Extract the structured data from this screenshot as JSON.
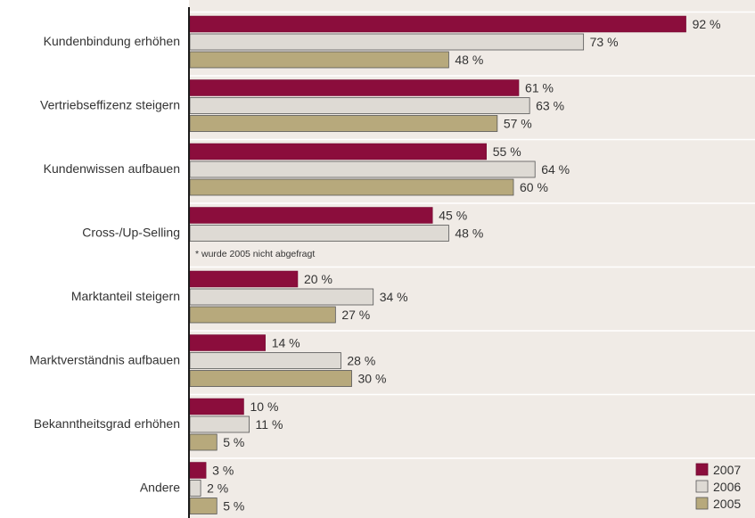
{
  "chart_data": {
    "type": "bar",
    "orientation": "horizontal",
    "categories": [
      "Kundenbindung erhöhen",
      "Vertriebseffizenz steigern",
      "Kundenwissen aufbauen",
      "Cross-/Up-Selling",
      "Marktanteil steigern",
      "Marktverständnis aufbauen",
      "Bekanntheitsgrad erhöhen",
      "Andere"
    ],
    "series": [
      {
        "name": "2007",
        "color": "#8b0d3c",
        "values": [
          92,
          61,
          55,
          45,
          20,
          14,
          10,
          3
        ]
      },
      {
        "name": "2006",
        "color": "#dedad4",
        "values": [
          73,
          63,
          64,
          48,
          34,
          28,
          11,
          2
        ]
      },
      {
        "name": "2005",
        "color": "#b7a97c",
        "values": [
          48,
          57,
          60,
          null,
          27,
          30,
          5,
          5
        ]
      }
    ],
    "value_suffix": " %",
    "xlim": [
      0,
      100
    ],
    "legend_position": "bottom-right",
    "footnote": "* wurde 2005 nicht abgefragt",
    "background_color": "#f0ebe6",
    "grid": false
  }
}
